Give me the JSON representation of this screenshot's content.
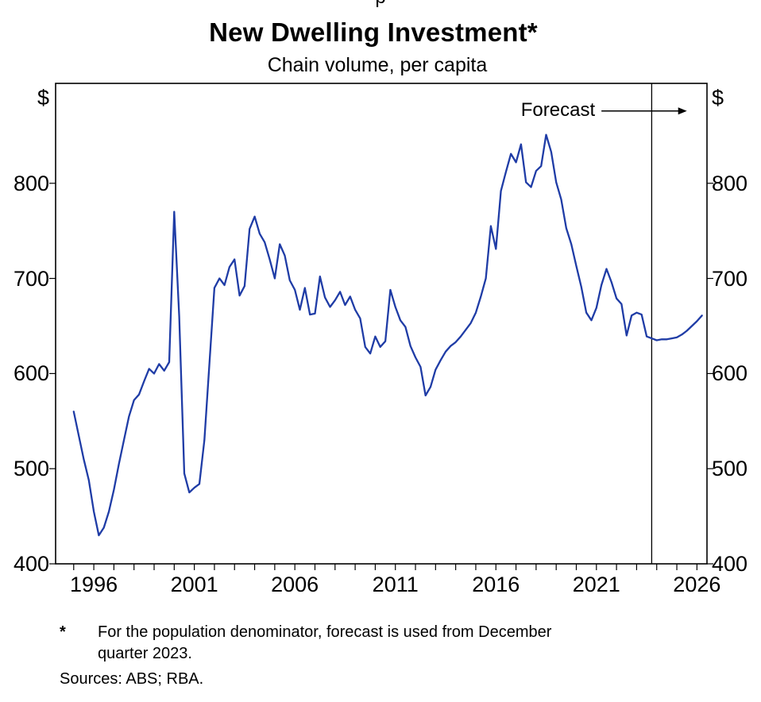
{
  "page": {
    "top_fragment": "p"
  },
  "chart_data": {
    "type": "line",
    "title": "New Dwelling Investment*",
    "subtitle": "Chain volume, per capita",
    "unit": "$",
    "ylim": [
      400,
      905
    ],
    "yticks": [
      400,
      500,
      600,
      700,
      800
    ],
    "xlim": [
      1994.1,
      2026.5
    ],
    "xticks": [
      1996,
      2001,
      2006,
      2011,
      2016,
      2021,
      2026
    ],
    "x_minor_tick_every": 1,
    "grid": false,
    "legend": "none",
    "forecast_boundary_x": 2023.75,
    "annotation": {
      "text": "Forecast",
      "y_value": 876,
      "arrow_from_year": 2021.25,
      "arrow_to_year": 2025.5
    },
    "frame_color": "#000000",
    "series": [
      {
        "name": "New dwelling investment per capita",
        "color": "#1f3ca6",
        "points": [
          [
            1995.0,
            560
          ],
          [
            1995.25,
            535
          ],
          [
            1995.5,
            510
          ],
          [
            1995.75,
            488
          ],
          [
            1996.0,
            455
          ],
          [
            1996.25,
            430
          ],
          [
            1996.5,
            438
          ],
          [
            1996.75,
            455
          ],
          [
            1997.0,
            478
          ],
          [
            1997.25,
            505
          ],
          [
            1997.5,
            530
          ],
          [
            1997.75,
            555
          ],
          [
            1998.0,
            572
          ],
          [
            1998.25,
            578
          ],
          [
            1998.5,
            592
          ],
          [
            1998.75,
            605
          ],
          [
            1999.0,
            600
          ],
          [
            1999.25,
            610
          ],
          [
            1999.5,
            603
          ],
          [
            1999.75,
            612
          ],
          [
            2000.0,
            770
          ],
          [
            2000.25,
            660
          ],
          [
            2000.5,
            495
          ],
          [
            2000.75,
            475
          ],
          [
            2001.0,
            480
          ],
          [
            2001.25,
            484
          ],
          [
            2001.5,
            530
          ],
          [
            2001.75,
            610
          ],
          [
            2002.0,
            690
          ],
          [
            2002.25,
            700
          ],
          [
            2002.5,
            693
          ],
          [
            2002.75,
            712
          ],
          [
            2003.0,
            720
          ],
          [
            2003.25,
            682
          ],
          [
            2003.5,
            692
          ],
          [
            2003.75,
            752
          ],
          [
            2004.0,
            765
          ],
          [
            2004.25,
            747
          ],
          [
            2004.5,
            738
          ],
          [
            2004.75,
            720
          ],
          [
            2005.0,
            700
          ],
          [
            2005.25,
            736
          ],
          [
            2005.5,
            724
          ],
          [
            2005.75,
            698
          ],
          [
            2006.0,
            688
          ],
          [
            2006.25,
            667
          ],
          [
            2006.5,
            690
          ],
          [
            2006.75,
            662
          ],
          [
            2007.0,
            663
          ],
          [
            2007.25,
            702
          ],
          [
            2007.5,
            680
          ],
          [
            2007.75,
            670
          ],
          [
            2008.0,
            677
          ],
          [
            2008.25,
            686
          ],
          [
            2008.5,
            672
          ],
          [
            2008.75,
            681
          ],
          [
            2009.0,
            667
          ],
          [
            2009.25,
            658
          ],
          [
            2009.5,
            628
          ],
          [
            2009.75,
            621
          ],
          [
            2010.0,
            639
          ],
          [
            2010.25,
            628
          ],
          [
            2010.5,
            634
          ],
          [
            2010.75,
            688
          ],
          [
            2011.0,
            670
          ],
          [
            2011.25,
            656
          ],
          [
            2011.5,
            649
          ],
          [
            2011.75,
            629
          ],
          [
            2012.0,
            617
          ],
          [
            2012.25,
            607
          ],
          [
            2012.5,
            577
          ],
          [
            2012.75,
            586
          ],
          [
            2013.0,
            604
          ],
          [
            2013.25,
            614
          ],
          [
            2013.5,
            623
          ],
          [
            2013.75,
            629
          ],
          [
            2014.0,
            633
          ],
          [
            2014.25,
            639
          ],
          [
            2014.5,
            646
          ],
          [
            2014.75,
            653
          ],
          [
            2015.0,
            664
          ],
          [
            2015.25,
            681
          ],
          [
            2015.5,
            700
          ],
          [
            2015.75,
            755
          ],
          [
            2016.0,
            731
          ],
          [
            2016.25,
            792
          ],
          [
            2016.5,
            812
          ],
          [
            2016.75,
            831
          ],
          [
            2017.0,
            822
          ],
          [
            2017.25,
            841
          ],
          [
            2017.5,
            801
          ],
          [
            2017.75,
            796
          ],
          [
            2018.0,
            813
          ],
          [
            2018.25,
            818
          ],
          [
            2018.5,
            851
          ],
          [
            2018.75,
            833
          ],
          [
            2019.0,
            801
          ],
          [
            2019.25,
            783
          ],
          [
            2019.5,
            753
          ],
          [
            2019.75,
            736
          ],
          [
            2020.0,
            713
          ],
          [
            2020.25,
            691
          ],
          [
            2020.5,
            664
          ],
          [
            2020.75,
            656
          ],
          [
            2021.0,
            669
          ],
          [
            2021.25,
            693
          ],
          [
            2021.5,
            710
          ],
          [
            2021.75,
            696
          ],
          [
            2022.0,
            679
          ],
          [
            2022.25,
            673
          ],
          [
            2022.5,
            640
          ],
          [
            2022.75,
            661
          ],
          [
            2023.0,
            664
          ],
          [
            2023.25,
            662
          ],
          [
            2023.5,
            639
          ],
          [
            2023.75,
            637
          ],
          [
            2024.0,
            635
          ],
          [
            2024.25,
            636
          ],
          [
            2024.5,
            636
          ],
          [
            2024.75,
            637
          ],
          [
            2025.0,
            638
          ],
          [
            2025.25,
            641
          ],
          [
            2025.5,
            645
          ],
          [
            2025.75,
            650
          ],
          [
            2026.0,
            655
          ],
          [
            2026.25,
            661
          ]
        ]
      }
    ]
  },
  "footnote": {
    "marker": "*",
    "text": "For the population denominator, forecast is used from December quarter 2023."
  },
  "sources": "Sources: ABS; RBA."
}
